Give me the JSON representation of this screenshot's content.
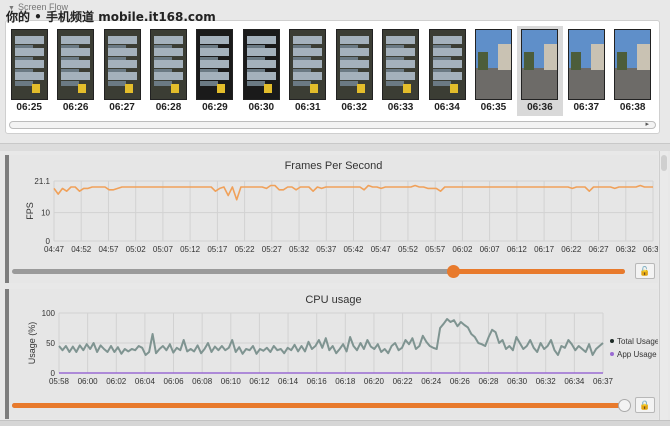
{
  "watermark": "你的 • 手机频道 mobile.it168.com",
  "screen_flow": {
    "title": "Screen Flow",
    "selected_index": 11,
    "thumbnails": [
      "06:25",
      "06:26",
      "06:27",
      "06:28",
      "06:29",
      "06:30",
      "06:31",
      "06:32",
      "06:33",
      "06:34",
      "06:35",
      "06:36",
      "06:37",
      "06:38"
    ],
    "dark_indices": [
      4,
      5
    ],
    "photo_indices": [
      10,
      11,
      12,
      13
    ]
  },
  "colors": {
    "fps_line": "#f0a15a",
    "cpu_total": "#7f9491",
    "cpu_app": "#9a6bd3",
    "slider_fill": "#e87a2c",
    "slider_track": "#9a9a9a"
  },
  "fps_chart": {
    "title": "Frames Per Second",
    "ylabel": "FPS",
    "y_ticks": [
      "21.1",
      "10",
      "0"
    ],
    "x_ticks": [
      "04:47",
      "04:52",
      "04:57",
      "05:02",
      "05:07",
      "05:12",
      "05:17",
      "05:22",
      "05:27",
      "05:32",
      "05:37",
      "05:42",
      "05:47",
      "05:52",
      "05:57",
      "06:02",
      "06:07",
      "06:12",
      "06:17",
      "06:22",
      "06:27",
      "06:32",
      "06:36"
    ],
    "slider_position": 0.72,
    "lock_icon": "unlock-icon"
  },
  "cpu_chart": {
    "title": "CPU usage",
    "ylabel": "Usage (%)",
    "y_ticks": [
      "100",
      "50",
      "0"
    ],
    "x_ticks": [
      "05:58",
      "06:00",
      "06:02",
      "06:04",
      "06:06",
      "06:08",
      "06:10",
      "06:12",
      "06:14",
      "06:16",
      "06:18",
      "06:20",
      "06:22",
      "06:24",
      "06:26",
      "06:28",
      "06:30",
      "06:32",
      "06:34",
      "06:37"
    ],
    "legend": [
      "Total Usage",
      "App Usage"
    ],
    "slider_position": 1.0,
    "lock_icon": "lock-icon"
  },
  "chart_data": [
    {
      "type": "line",
      "title": "Frames Per Second",
      "ylabel": "FPS",
      "ylim": [
        0,
        21.1
      ],
      "x_range": [
        "04:47",
        "06:36"
      ],
      "series": [
        {
          "values": [
            18.5,
            16.5,
            18.5,
            17.5,
            19,
            19,
            17.5,
            18.5,
            18.5,
            19,
            19,
            19,
            19,
            18,
            18,
            18.5,
            19,
            19,
            19,
            19,
            19,
            19,
            19,
            19,
            19,
            19,
            19,
            19,
            19,
            19,
            19,
            19,
            19,
            19,
            19,
            19,
            19,
            19,
            17.5,
            18.5,
            19,
            16,
            19,
            14.5,
            19,
            19,
            19,
            19,
            19,
            19,
            18.5,
            19.5,
            19.5,
            18,
            18,
            19,
            19,
            18,
            19,
            19,
            19,
            17.5,
            19,
            18.5,
            19,
            19,
            19,
            19,
            19,
            19,
            19,
            19,
            19,
            18,
            19.5,
            19,
            19,
            18.5,
            19,
            19,
            19,
            19,
            19,
            19,
            19,
            19.5,
            19,
            19,
            18.5,
            18.5,
            18.5,
            17.5,
            19,
            19,
            19,
            19,
            19,
            19,
            19,
            19,
            19,
            19,
            19,
            19,
            19,
            19,
            19,
            19,
            19,
            19,
            19,
            19,
            19,
            19,
            19,
            19,
            19,
            19,
            19,
            19,
            19,
            19,
            18.5,
            19,
            19,
            19,
            17.5,
            19,
            19,
            19,
            19,
            19,
            18.5,
            19,
            19,
            19,
            19,
            19,
            19.5,
            19,
            19,
            19
          ]
        }
      ]
    },
    {
      "type": "line",
      "title": "CPU usage",
      "ylabel": "Usage (%)",
      "ylim": [
        0,
        100
      ],
      "x_range": [
        "05:58",
        "06:37"
      ],
      "legend_position": "right",
      "series": [
        {
          "name": "Total Usage",
          "values": [
            45,
            38,
            45,
            35,
            44,
            35,
            46,
            38,
            48,
            40,
            50,
            35,
            46,
            40,
            35,
            45,
            35,
            43,
            32,
            40,
            36,
            40,
            38,
            45,
            42,
            30,
            35,
            65,
            33,
            40,
            45,
            38,
            48,
            34,
            42,
            38,
            55,
            36,
            40,
            36,
            46,
            33,
            40,
            50,
            35,
            44,
            38,
            45,
            38,
            42,
            55,
            35,
            43,
            32,
            40,
            38,
            45,
            32,
            40,
            37,
            42,
            35,
            45,
            38,
            40,
            33,
            42,
            38,
            47,
            36,
            45,
            36,
            52,
            40,
            45,
            55,
            42,
            58,
            38,
            45,
            33,
            40,
            48,
            36,
            60,
            45,
            38,
            50,
            40,
            55,
            44,
            40,
            48,
            35,
            40,
            33,
            45,
            50,
            38,
            42,
            55,
            48,
            58,
            40,
            45,
            62,
            52,
            45,
            42,
            40,
            75,
            82,
            90,
            85,
            88,
            78,
            85,
            80,
            76,
            65,
            60,
            50,
            48,
            45,
            60,
            72,
            68,
            50,
            55,
            40,
            45,
            38,
            60,
            50,
            40,
            45,
            55,
            42,
            35,
            50,
            40,
            45,
            55,
            38,
            30,
            45,
            42,
            55,
            48,
            38,
            45,
            40,
            35,
            48,
            30,
            40,
            45,
            50
          ]
        },
        {
          "name": "App Usage",
          "values": [
            0,
            0,
            0,
            0,
            0,
            0,
            0,
            0,
            0,
            0
          ]
        }
      ]
    }
  ]
}
